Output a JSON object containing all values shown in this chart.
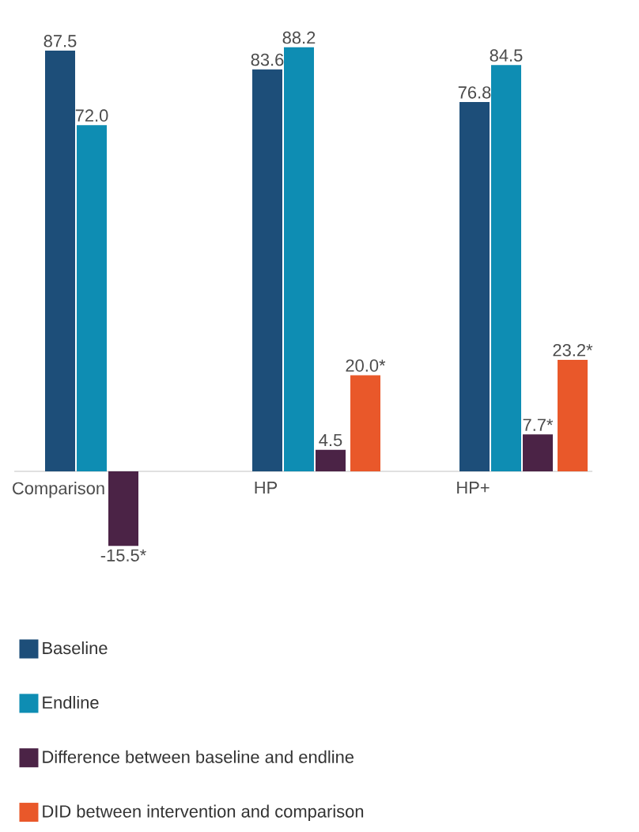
{
  "chart_data": {
    "type": "bar",
    "categories": [
      "Comparison",
      "HP",
      "HP+"
    ],
    "series": [
      {
        "name": "Baseline",
        "color": "#1d4e79",
        "values": [
          87.5,
          83.6,
          76.8
        ],
        "value_labels": [
          "87.5",
          "83.6",
          "76.8"
        ]
      },
      {
        "name": "Endline",
        "color": "#0e8db3",
        "values": [
          72.0,
          88.2,
          84.5
        ],
        "value_labels": [
          "72.0",
          "88.2",
          "84.5"
        ]
      },
      {
        "name": "Difference between baseline and endline",
        "color": "#4b2346",
        "values": [
          -15.5,
          4.5,
          7.7
        ],
        "value_labels": [
          "-15.5*",
          "4.5",
          "7.7*"
        ]
      },
      {
        "name": "DID between intervention and comparison",
        "color": "#e9582a",
        "values": [
          null,
          20.0,
          23.2
        ],
        "value_labels": [
          null,
          "20.0*",
          "23.2*"
        ]
      }
    ],
    "legend": "bottom"
  }
}
